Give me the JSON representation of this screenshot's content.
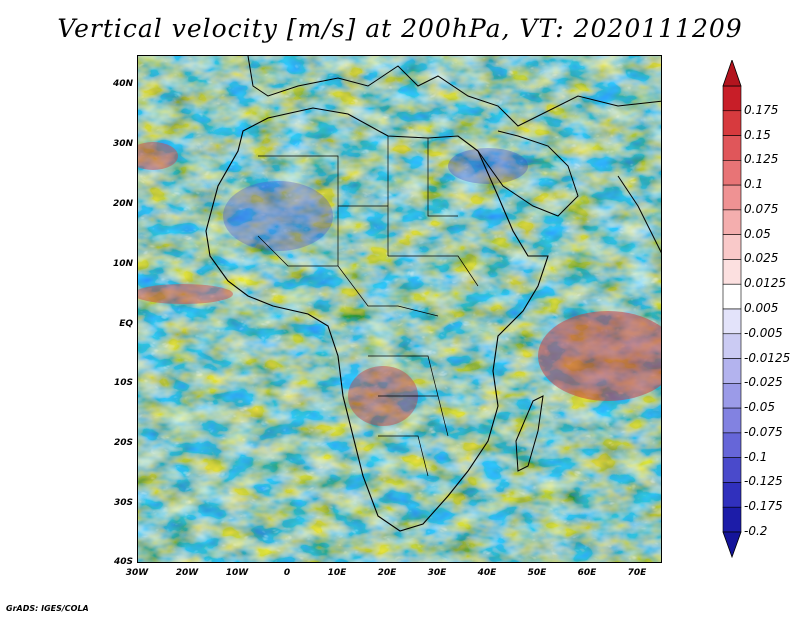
{
  "title": "Vertical velocity [m/s] at 200hPa, VT: 2020111209",
  "credit": "GrADS: IGES/COLA",
  "map": {
    "region": "Africa",
    "lat_labels": [
      "40N",
      "30N",
      "20N",
      "10N",
      "EQ",
      "10S",
      "20S",
      "30S",
      "40S"
    ],
    "lon_labels": [
      "30W",
      "20W",
      "10W",
      "0",
      "10E",
      "20E",
      "30E",
      "40E",
      "50E",
      "60E",
      "70E"
    ],
    "lat_range": [
      -40,
      45
    ],
    "lon_range": [
      -30,
      75
    ],
    "field": "vertical velocity",
    "units": "m/s",
    "level": "200hPa"
  },
  "colorbar": {
    "labels": [
      "0.175",
      "0.15",
      "0.125",
      "0.1",
      "0.075",
      "0.05",
      "0.025",
      "0.0125",
      "0.005",
      "-0.005",
      "-0.0125",
      "-0.025",
      "-0.05",
      "-0.075",
      "-0.1",
      "-0.125",
      "-0.175",
      "-0.2"
    ],
    "colors": [
      "#c81e28",
      "#d73a3e",
      "#e0565a",
      "#e87476",
      "#ef9293",
      "#f4aeae",
      "#f9c9c9",
      "#fce0e0",
      "#ffffff",
      "#e3e3fa",
      "#cbcbf3",
      "#b3b3ee",
      "#9b9be8",
      "#8282e1",
      "#6666d8",
      "#4a4acb",
      "#3030bd",
      "#1c1ca8"
    ],
    "top_color": "#b3141e",
    "bottom_color": "#14149a"
  }
}
